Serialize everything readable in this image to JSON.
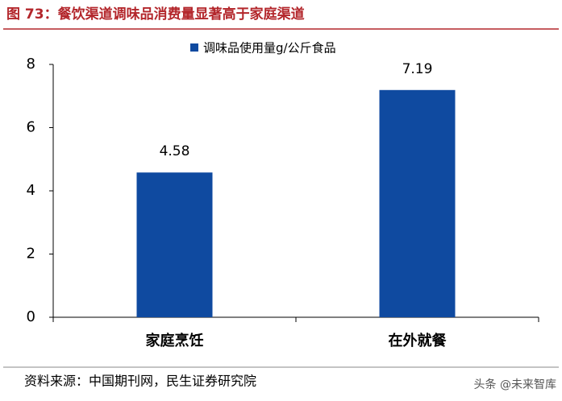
{
  "chart_data": {
    "type": "bar",
    "title": "图 73：餐饮渠道调味品消费量显著高于家庭渠道",
    "categories": [
      "家庭烹饪",
      "在外就餐"
    ],
    "series": [
      {
        "name": "调味品使用量g/公斤食品",
        "color": "#0f4aa0",
        "values": [
          4.58,
          7.19
        ]
      }
    ],
    "ylim": [
      0,
      8
    ],
    "yticks": [
      0,
      2,
      4,
      6,
      8
    ],
    "grid": false,
    "legend": "top",
    "source": "资料来源：中国期刊网，民生证券研究院",
    "watermark": "头条 @未来智库"
  }
}
